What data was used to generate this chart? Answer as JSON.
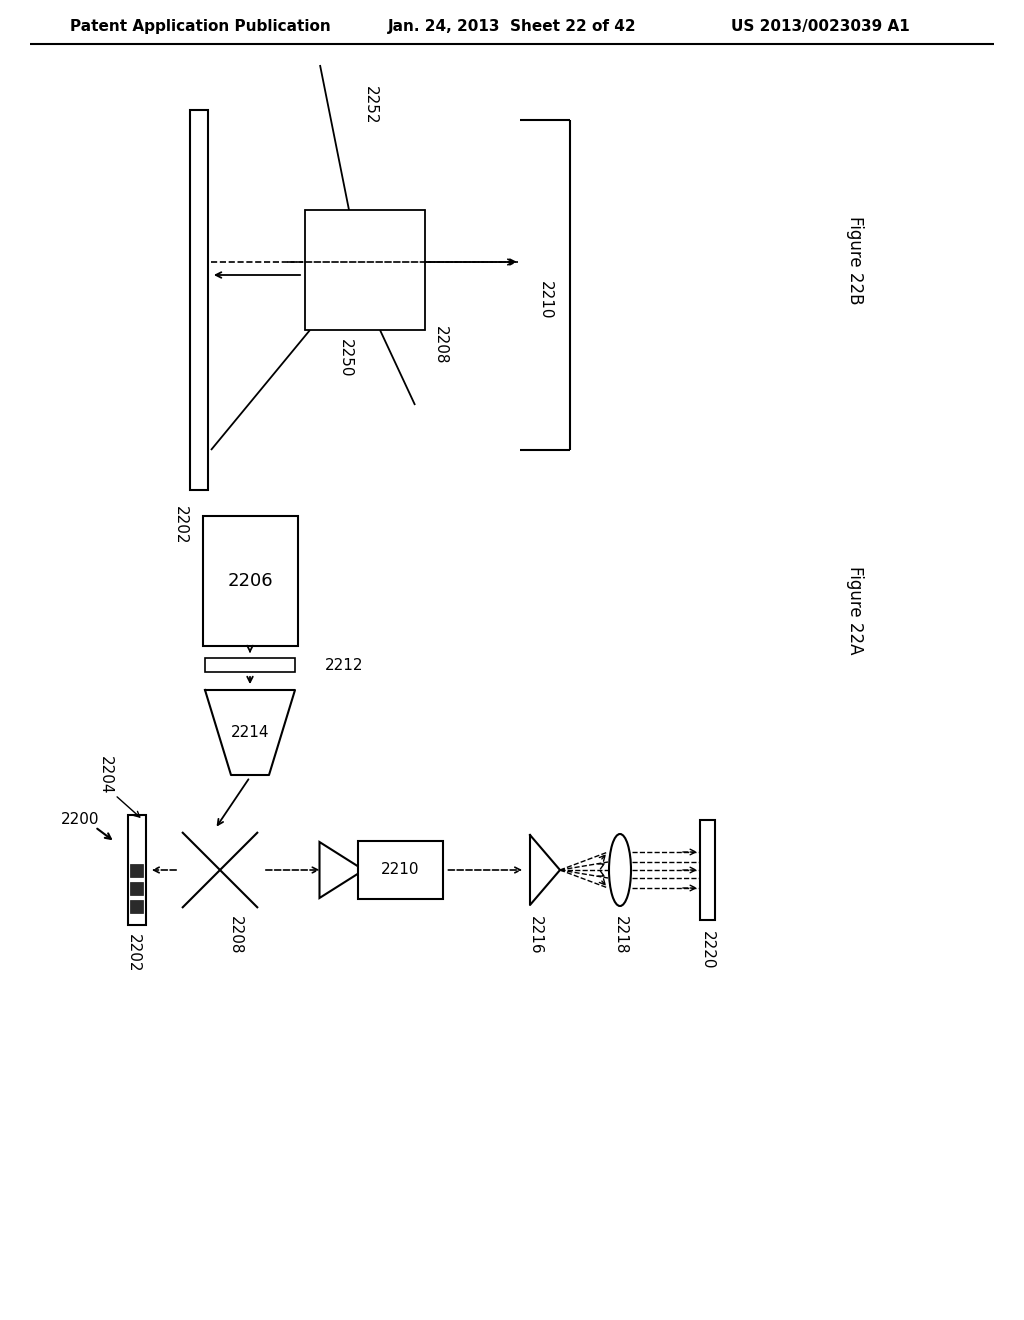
{
  "header_left": "Patent Application Publication",
  "header_mid": "Jan. 24, 2013  Sheet 22 of 42",
  "header_right": "US 2013/0023039 A1",
  "fig22b_label": "Figure 22B",
  "fig22a_label": "Figure 22A",
  "bg_color": "#ffffff",
  "line_color": "#000000"
}
